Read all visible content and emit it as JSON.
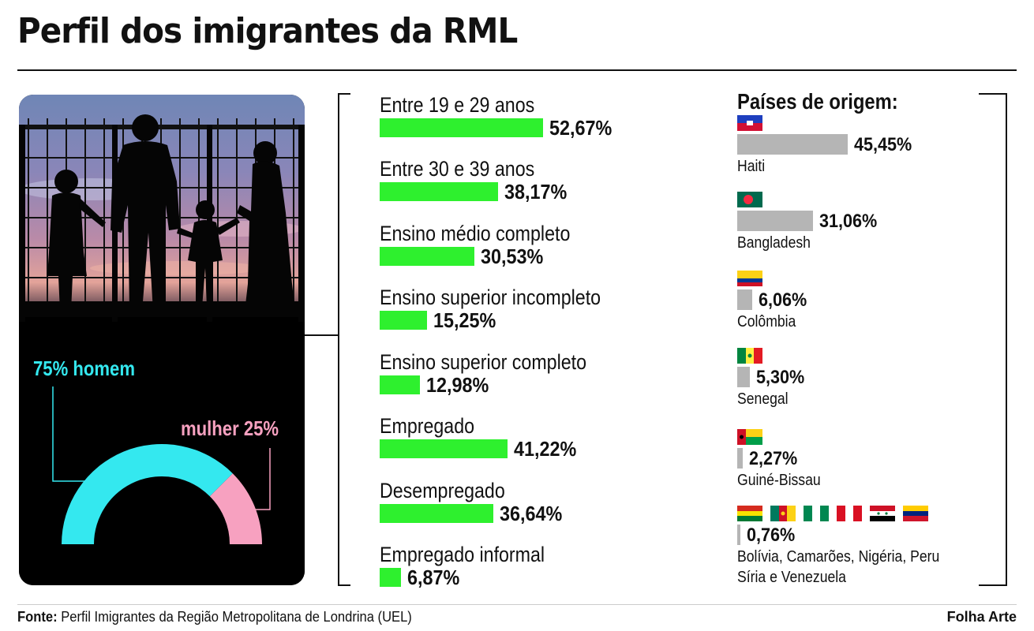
{
  "title": "Perfil dos imigrantes da RML",
  "gender": {
    "men_label": "75% homem",
    "women_label": "mulher 25%",
    "men_share": 75,
    "women_share": 25,
    "men_color": "#34e8ef",
    "women_color": "#f7a1c0"
  },
  "countries_title": "Países de origem:",
  "chart_data": [
    {
      "type": "bar",
      "orientation": "horizontal",
      "categories": [
        "Entre 19 e 29 anos",
        "Entre 30 e 39 anos",
        "Ensino médio completo",
        "Ensino superior incompleto",
        "Ensino superior completo",
        "Empregado",
        "Desempregado",
        "Empregado informal"
      ],
      "values": [
        52.67,
        38.17,
        30.53,
        15.25,
        12.98,
        41.22,
        36.64,
        6.87
      ],
      "value_labels": [
        "52,67%",
        "38,17%",
        "30,53%",
        "15,25%",
        "12,98%",
        "41,22%",
        "36,64%",
        "6,87%"
      ],
      "bar_color": "#2ef02e"
    },
    {
      "type": "bar",
      "orientation": "horizontal",
      "title": "Países de origem:",
      "categories": [
        "Haiti",
        "Bangladesh",
        "Colômbia",
        "Senegal",
        "Guiné-Bissau",
        "Bolívia, Camarões, Nigéria, Peru Síria e Venezuela"
      ],
      "values": [
        45.45,
        31.06,
        6.06,
        5.3,
        2.27,
        0.76
      ],
      "value_labels": [
        "45,45%",
        "31,06%",
        "6,06%",
        "5,30%",
        "2,27%",
        "0,76%"
      ],
      "bar_color": "#b5b5b5"
    }
  ],
  "countries": [
    {
      "name": "Haiti",
      "value": 45.45,
      "value_label": "45,45%",
      "flags": [
        "haiti-flag-icon"
      ]
    },
    {
      "name": "Bangladesh",
      "value": 31.06,
      "value_label": "31,06%",
      "flags": [
        "bangladesh-flag-icon"
      ]
    },
    {
      "name": "Colômbia",
      "value": 6.06,
      "value_label": "6,06%",
      "flags": [
        "colombia-flag-icon"
      ]
    },
    {
      "name": "Senegal",
      "value": 5.3,
      "value_label": "5,30%",
      "flags": [
        "senegal-flag-icon"
      ]
    },
    {
      "name": "Guiné-Bissau",
      "value": 2.27,
      "value_label": "2,27%",
      "flags": [
        "guinea-bissau-flag-icon"
      ]
    },
    {
      "name": "Bolívia, Camarões, Nigéria, Peru",
      "name2": "Síria e Venezuela",
      "value": 0.76,
      "value_label": "0,76%",
      "flags": [
        "bolivia-flag-icon",
        "cameroon-flag-icon",
        "nigeria-flag-icon",
        "peru-flag-icon",
        "syria-flag-icon",
        "venezuela-flag-icon"
      ]
    }
  ],
  "footer": {
    "source_prefix": "Fonte:",
    "source_text": "Perfil Imigrantes da Região Metropolitana de Londrina (UEL)",
    "credit": "Folha Arte"
  }
}
